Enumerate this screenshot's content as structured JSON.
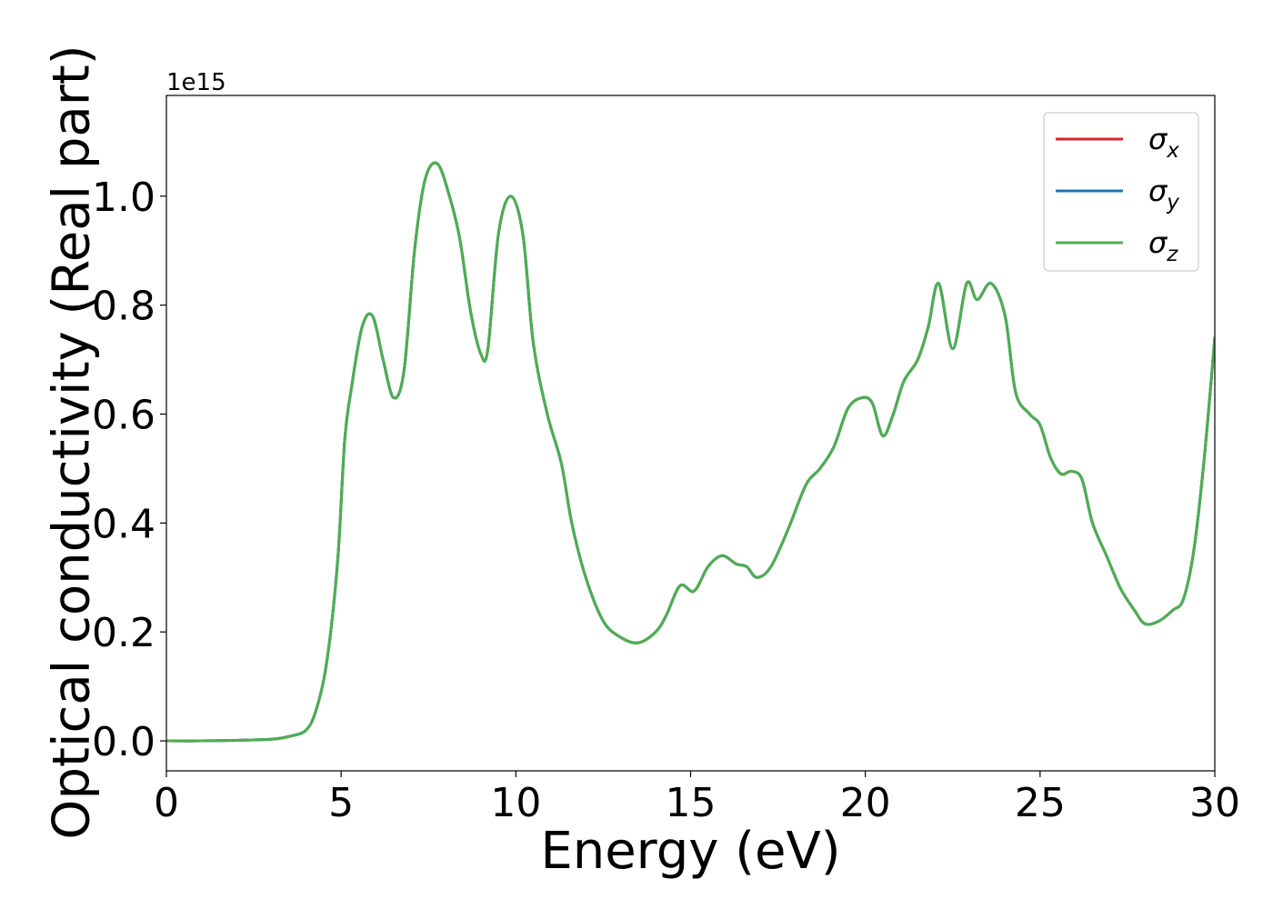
{
  "chart_data": {
    "type": "line",
    "title": "",
    "xlabel": "Energy (eV)",
    "ylabel": "Optical conductivity (Real part)",
    "y_offset_label": "1e15",
    "xlim": [
      0,
      30
    ],
    "ylim": [
      -0.055,
      1.185
    ],
    "xticks": [
      0,
      5,
      10,
      15,
      20,
      25,
      30
    ],
    "yticks": [
      0.0,
      0.2,
      0.4,
      0.6,
      0.8,
      1.0
    ],
    "grid": false,
    "legend": {
      "position": "top-right",
      "entries": [
        {
          "symbol": "σ",
          "sub": "x",
          "color": "#d62728"
        },
        {
          "symbol": "σ",
          "sub": "y",
          "color": "#1f77b4"
        },
        {
          "symbol": "σ",
          "sub": "z",
          "color": "#4caf50"
        }
      ]
    },
    "x": [
      0,
      1,
      2,
      3,
      3.5,
      4.0,
      4.3,
      4.6,
      4.9,
      5.1,
      5.3,
      5.6,
      5.9,
      6.2,
      6.5,
      6.8,
      7.1,
      7.4,
      7.75,
      8.1,
      8.4,
      8.7,
      9.0,
      9.2,
      9.5,
      9.85,
      10.2,
      10.5,
      10.9,
      11.3,
      11.6,
      12.0,
      12.5,
      13.0,
      13.5,
      14.0,
      14.3,
      14.7,
      15.1,
      15.5,
      15.9,
      16.3,
      16.6,
      16.9,
      17.3,
      17.8,
      18.3,
      18.7,
      19.1,
      19.5,
      19.9,
      20.2,
      20.5,
      20.8,
      21.1,
      21.5,
      21.8,
      22.1,
      22.5,
      22.9,
      23.2,
      23.6,
      24.0,
      24.3,
      24.7,
      25.0,
      25.3,
      25.6,
      25.9,
      26.2,
      26.5,
      26.9,
      27.3,
      27.7,
      28.0,
      28.4,
      28.8,
      29.1,
      29.4,
      29.7,
      30.0
    ],
    "series": [
      {
        "color": "#d62728",
        "values": [
          0.0,
          0.0,
          0.001,
          0.003,
          0.008,
          0.02,
          0.06,
          0.15,
          0.33,
          0.55,
          0.65,
          0.76,
          0.78,
          0.7,
          0.63,
          0.68,
          0.9,
          1.03,
          1.06,
          1.0,
          0.92,
          0.79,
          0.71,
          0.72,
          0.93,
          1.0,
          0.93,
          0.73,
          0.6,
          0.51,
          0.4,
          0.3,
          0.22,
          0.19,
          0.18,
          0.2,
          0.23,
          0.285,
          0.275,
          0.32,
          0.34,
          0.325,
          0.32,
          0.3,
          0.32,
          0.39,
          0.47,
          0.5,
          0.54,
          0.61,
          0.63,
          0.62,
          0.56,
          0.6,
          0.66,
          0.7,
          0.76,
          0.84,
          0.72,
          0.84,
          0.81,
          0.84,
          0.78,
          0.64,
          0.6,
          0.58,
          0.52,
          0.49,
          0.495,
          0.48,
          0.4,
          0.34,
          0.28,
          0.24,
          0.215,
          0.22,
          0.24,
          0.26,
          0.35,
          0.52,
          0.74
        ]
      },
      {
        "color": "#1f77b4",
        "values": [
          0.0,
          0.0,
          0.001,
          0.003,
          0.008,
          0.02,
          0.06,
          0.15,
          0.33,
          0.55,
          0.65,
          0.76,
          0.78,
          0.7,
          0.63,
          0.68,
          0.9,
          1.03,
          1.06,
          1.0,
          0.92,
          0.79,
          0.71,
          0.72,
          0.93,
          1.0,
          0.93,
          0.73,
          0.6,
          0.51,
          0.4,
          0.3,
          0.22,
          0.19,
          0.18,
          0.2,
          0.23,
          0.285,
          0.275,
          0.32,
          0.34,
          0.325,
          0.32,
          0.3,
          0.32,
          0.39,
          0.47,
          0.5,
          0.54,
          0.61,
          0.63,
          0.62,
          0.56,
          0.6,
          0.66,
          0.7,
          0.76,
          0.84,
          0.72,
          0.84,
          0.81,
          0.84,
          0.78,
          0.64,
          0.6,
          0.58,
          0.52,
          0.49,
          0.495,
          0.48,
          0.4,
          0.34,
          0.28,
          0.24,
          0.215,
          0.22,
          0.24,
          0.26,
          0.35,
          0.52,
          0.74
        ]
      },
      {
        "color": "#4caf50",
        "values": [
          0.0,
          0.0,
          0.001,
          0.003,
          0.008,
          0.02,
          0.06,
          0.15,
          0.33,
          0.55,
          0.65,
          0.76,
          0.78,
          0.7,
          0.63,
          0.68,
          0.9,
          1.03,
          1.06,
          1.0,
          0.92,
          0.79,
          0.71,
          0.72,
          0.93,
          1.0,
          0.93,
          0.73,
          0.6,
          0.51,
          0.4,
          0.3,
          0.22,
          0.19,
          0.18,
          0.2,
          0.23,
          0.285,
          0.275,
          0.32,
          0.34,
          0.325,
          0.32,
          0.3,
          0.32,
          0.39,
          0.47,
          0.5,
          0.54,
          0.61,
          0.63,
          0.62,
          0.56,
          0.6,
          0.66,
          0.7,
          0.76,
          0.84,
          0.72,
          0.84,
          0.81,
          0.84,
          0.78,
          0.64,
          0.6,
          0.58,
          0.52,
          0.49,
          0.495,
          0.48,
          0.4,
          0.34,
          0.28,
          0.24,
          0.215,
          0.22,
          0.24,
          0.26,
          0.35,
          0.52,
          0.74
        ]
      }
    ]
  }
}
